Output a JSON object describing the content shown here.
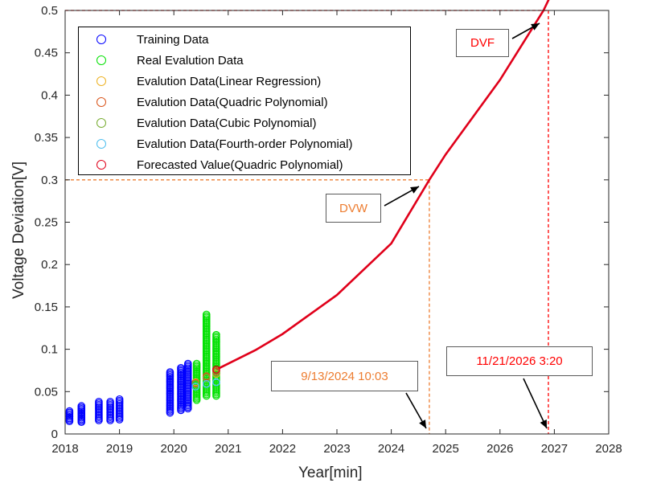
{
  "chart_data": {
    "type": "scatter",
    "xlabel": "Year[min]",
    "ylabel": "Voltage Deviation[V]",
    "xlim": [
      2018,
      2028
    ],
    "ylim": [
      0,
      0.5
    ],
    "xticks": [
      "2018",
      "2019",
      "2020",
      "2021",
      "2022",
      "2023",
      "2024",
      "2025",
      "2026",
      "2027",
      "2028"
    ],
    "yticks": [
      "0",
      "0.05",
      "0.1",
      "0.15",
      "0.2",
      "0.25",
      "0.3",
      "0.35",
      "0.4",
      "0.45",
      "0.5"
    ],
    "grid": false,
    "legend_position": "top-left",
    "series": [
      {
        "name": "Training Data",
        "color": "#0000ff",
        "marker": "circle",
        "clusters": [
          {
            "x": 2018.08,
            "ymin": 0.015,
            "ymax": 0.027
          },
          {
            "x": 2018.3,
            "ymin": 0.014,
            "ymax": 0.033
          },
          {
            "x": 2018.62,
            "ymin": 0.016,
            "ymax": 0.038
          },
          {
            "x": 2018.83,
            "ymin": 0.016,
            "ymax": 0.038
          },
          {
            "x": 2019.0,
            "ymin": 0.017,
            "ymax": 0.041
          },
          {
            "x": 2019.93,
            "ymin": 0.025,
            "ymax": 0.073
          },
          {
            "x": 2020.13,
            "ymin": 0.028,
            "ymax": 0.078
          },
          {
            "x": 2020.26,
            "ymin": 0.03,
            "ymax": 0.083
          }
        ]
      },
      {
        "name": "Real Evalution Data",
        "color": "#00e000",
        "marker": "circle",
        "clusters": [
          {
            "x": 2020.42,
            "ymin": 0.04,
            "ymax": 0.083
          },
          {
            "x": 2020.6,
            "ymin": 0.045,
            "ymax": 0.141
          },
          {
            "x": 2020.78,
            "ymin": 0.045,
            "ymax": 0.117
          }
        ]
      },
      {
        "name": "Evalution Data(Linear Regression)",
        "color": "#edb120",
        "marker": "circle",
        "points": [
          [
            2020.4,
            0.061
          ],
          [
            2020.6,
            0.066
          ],
          [
            2020.78,
            0.071
          ]
        ]
      },
      {
        "name": "Evalution Data(Quadric Polynomial)",
        "color": "#d95319",
        "marker": "circle",
        "points": [
          [
            2020.4,
            0.06
          ],
          [
            2020.6,
            0.068
          ],
          [
            2020.78,
            0.074
          ]
        ]
      },
      {
        "name": "Evalution Data(Cubic Polynomial)",
        "color": "#77ac30",
        "marker": "circle",
        "points": [
          [
            2020.4,
            0.059
          ],
          [
            2020.6,
            0.066
          ],
          [
            2020.78,
            0.072
          ]
        ]
      },
      {
        "name": "Evalution Data(Fourth-order Polynomial)",
        "color": "#4dbeee",
        "marker": "circle",
        "points": [
          [
            2020.4,
            0.056
          ],
          [
            2020.6,
            0.059
          ],
          [
            2020.78,
            0.061
          ]
        ]
      },
      {
        "name": "Forecasted Value(Quadric Polynomial)",
        "color": "#e0001a",
        "marker": "circle",
        "points": [
          [
            2020.78,
            0.076
          ]
        ],
        "curve": {
          "x": [
            2020.78,
            2021.5,
            2022.0,
            2023.0,
            2024.0,
            2024.7,
            2025.0,
            2026.0,
            2026.8,
            2026.95
          ],
          "y": [
            0.076,
            0.099,
            0.118,
            0.164,
            0.225,
            0.3,
            0.33,
            0.418,
            0.5,
            0.52
          ]
        }
      }
    ],
    "reference_lines": [
      {
        "label": "DVW",
        "y": 0.3,
        "x": 2024.7,
        "color": "#ed7d31"
      },
      {
        "label": "DVF",
        "y": 0.5,
        "x": 2026.89,
        "color": "#ff0000"
      }
    ],
    "annotations": [
      {
        "key": "dvf",
        "text": "DVF",
        "color": "#ff0000"
      },
      {
        "key": "dvw",
        "text": "DVW",
        "color": "#ed7d31"
      },
      {
        "key": "date_dvw",
        "text": "9/13/2024 10:03",
        "color": "#ed7d31"
      },
      {
        "key": "date_dvf",
        "text": "11/21/2026 3:20",
        "color": "#ff0000"
      }
    ]
  }
}
